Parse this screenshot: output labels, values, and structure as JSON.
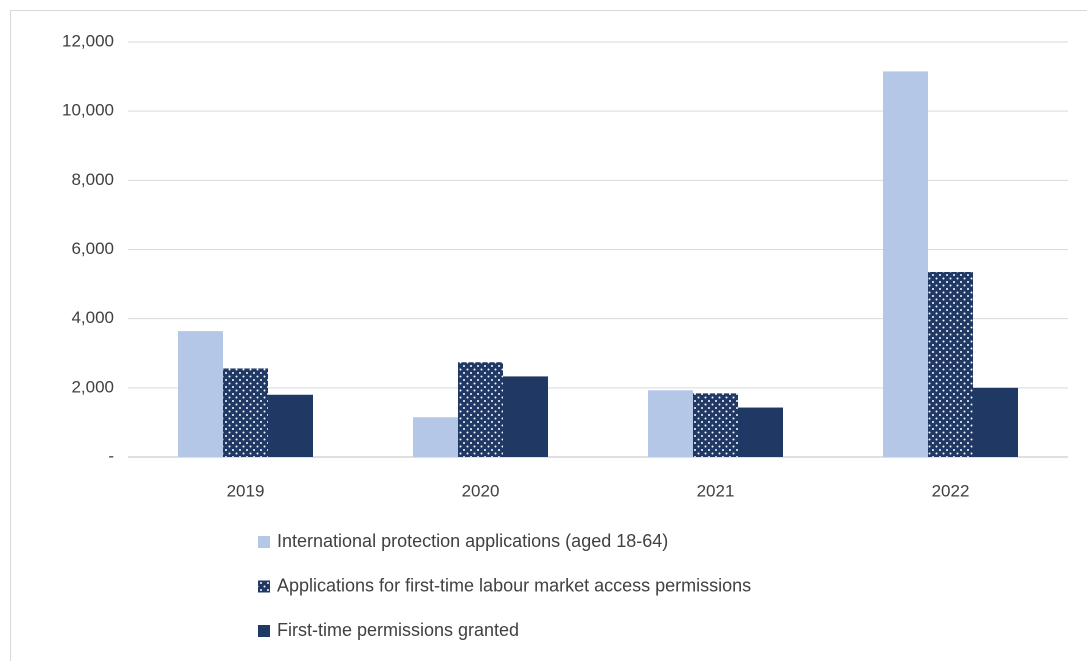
{
  "chart_data": {
    "type": "bar",
    "categories": [
      "2019",
      "2020",
      "2021",
      "2022"
    ],
    "series": [
      {
        "name": "International protection applications (aged 18-64)",
        "color": "#b4c7e7",
        "values": [
          3640,
          1150,
          1930,
          11150
        ]
      },
      {
        "name": "Applications for first-time labour market access permissions",
        "color": "#1f3864",
        "pattern": "dots",
        "values": [
          2560,
          2740,
          1840,
          5350
        ]
      },
      {
        "name": "First-time permissions granted",
        "color": "#1f3864",
        "values": [
          1800,
          2330,
          1430,
          2000
        ]
      }
    ],
    "ylim": [
      0,
      12000
    ],
    "yticks": [
      {
        "value": 0,
        "label": "-"
      },
      {
        "value": 2000,
        "label": "2,000"
      },
      {
        "value": 4000,
        "label": "4,000"
      },
      {
        "value": 6000,
        "label": "6,000"
      },
      {
        "value": 8000,
        "label": "8,000"
      },
      {
        "value": 10000,
        "label": "10,000"
      },
      {
        "value": 12000,
        "label": "12,000"
      }
    ],
    "grid": true,
    "legend": "bottom"
  }
}
